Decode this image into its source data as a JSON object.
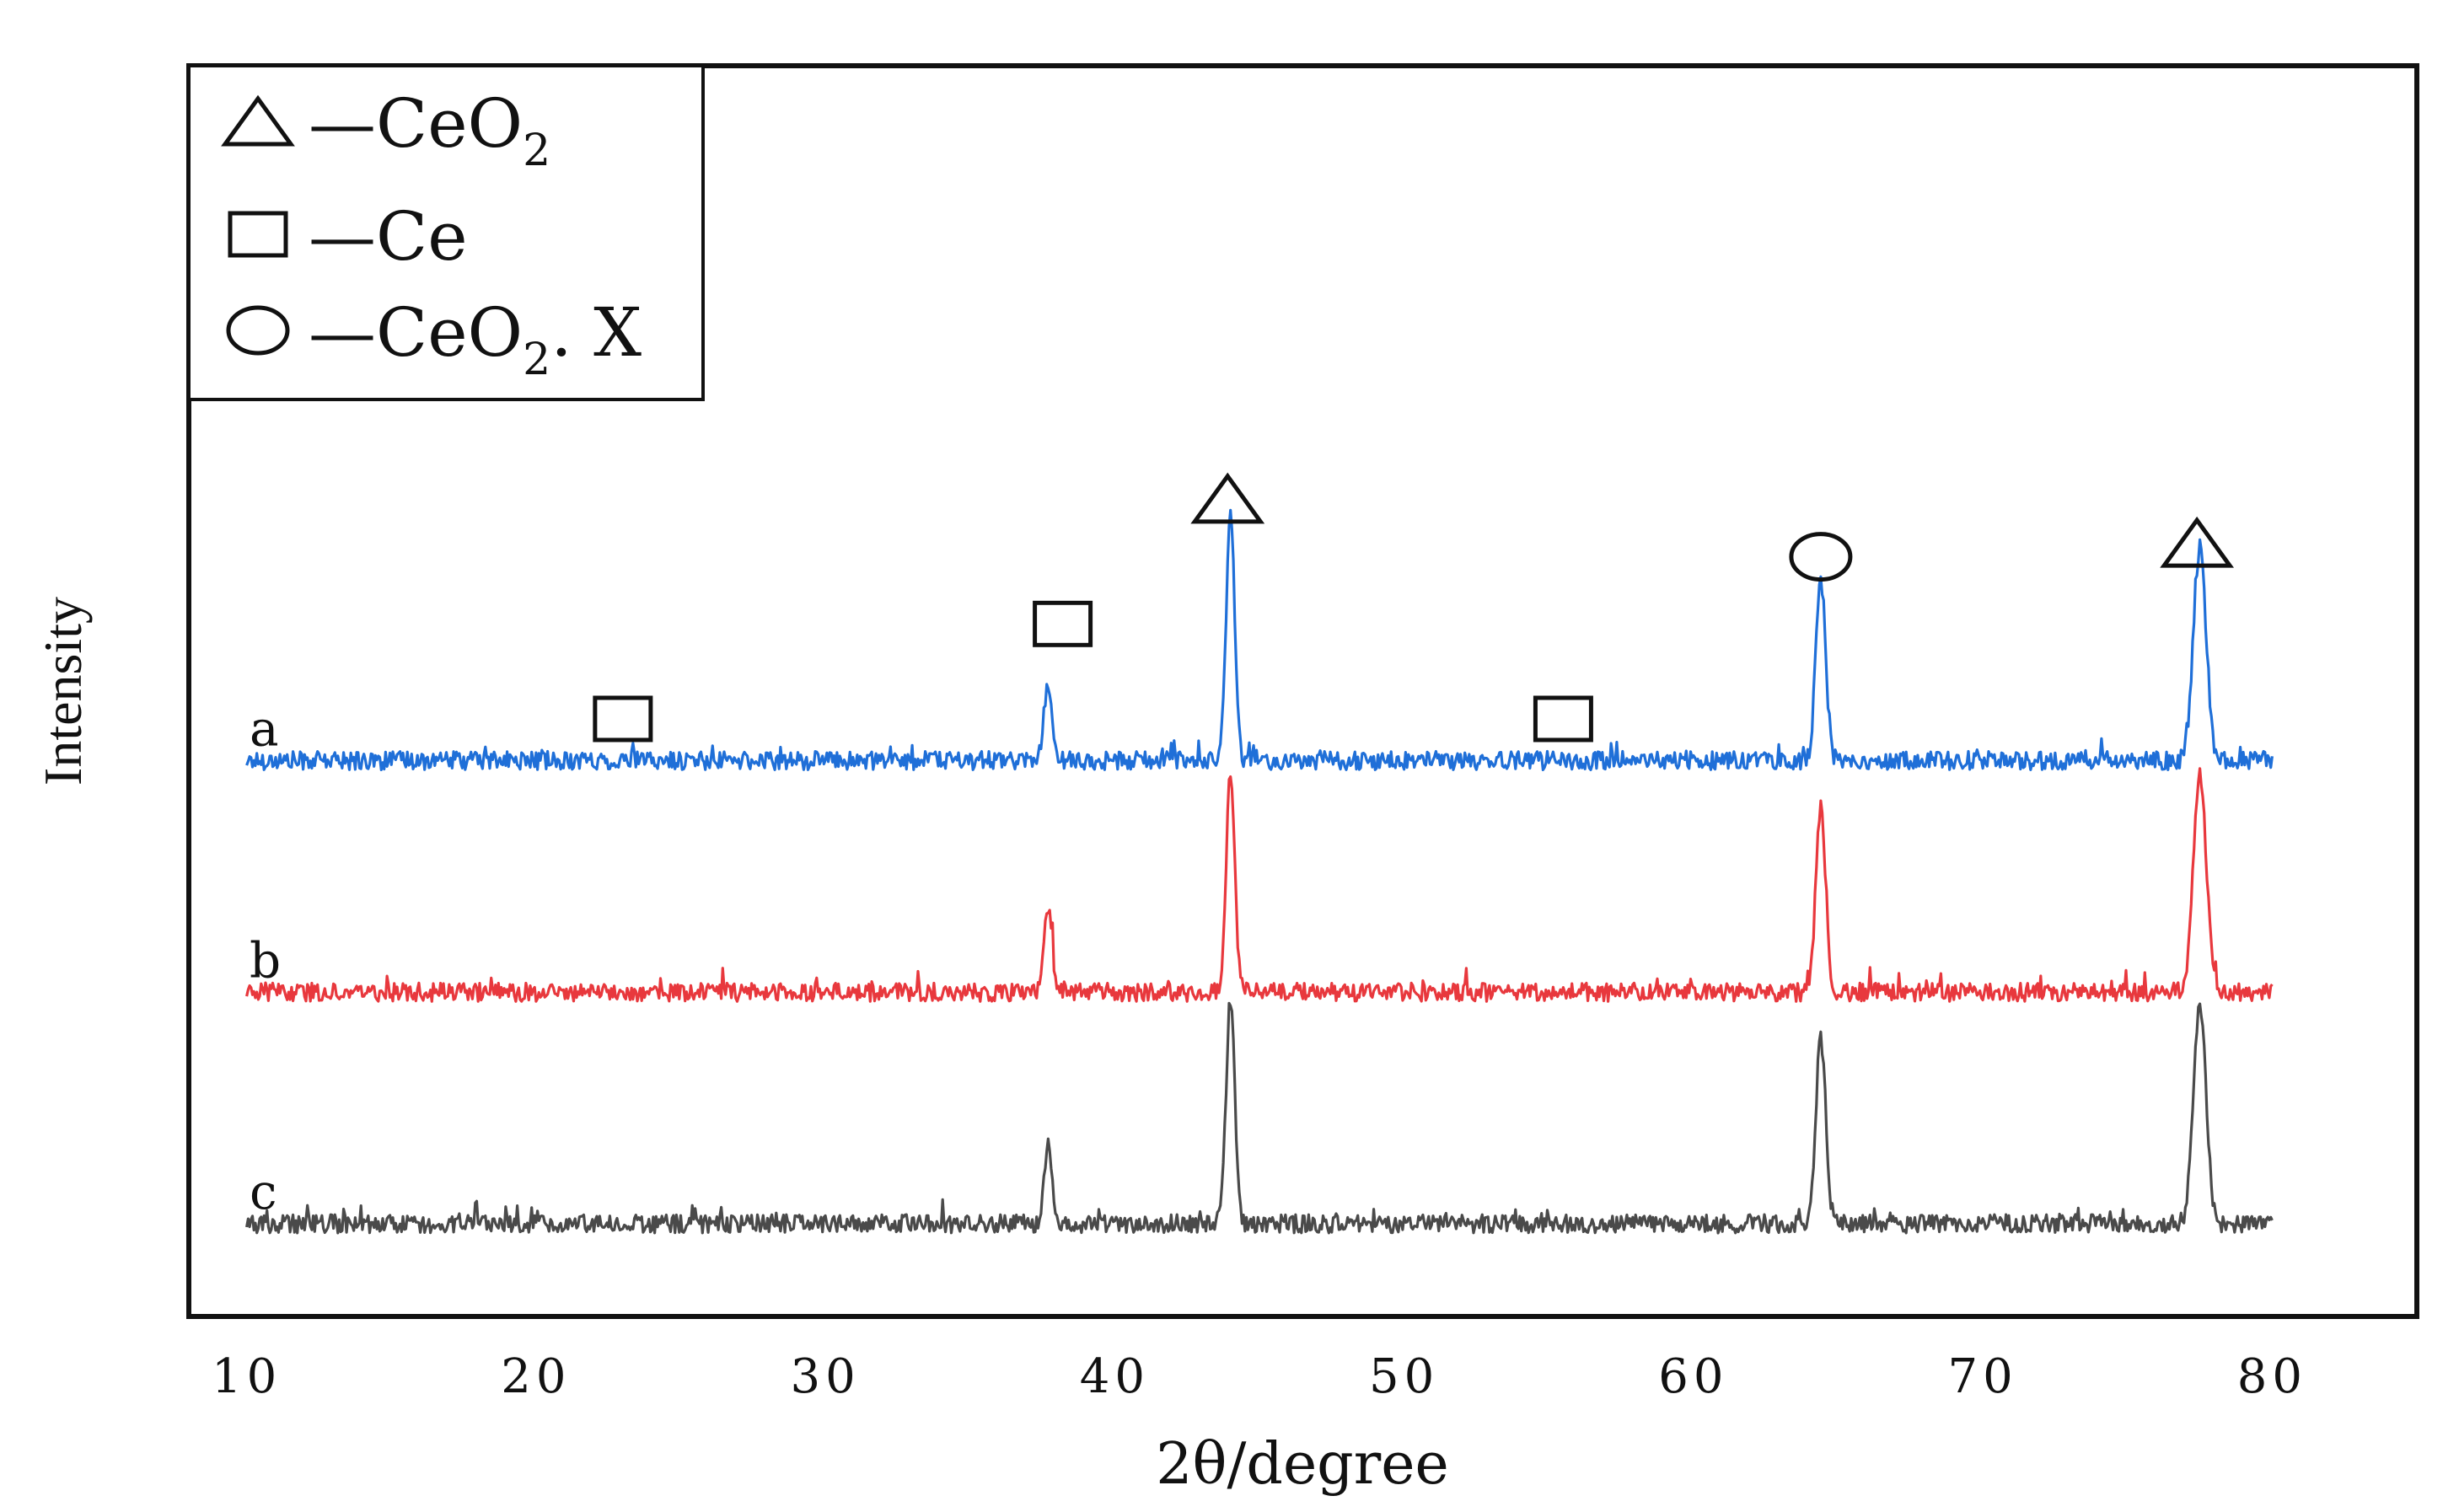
{
  "chart_data": {
    "type": "line",
    "title": "",
    "xlabel": "2θ/degree",
    "ylabel": "Intensity",
    "xlim": [
      8,
      85
    ],
    "xticks": [
      10,
      20,
      30,
      40,
      50,
      60,
      70,
      80
    ],
    "x_range": [
      10,
      80
    ],
    "ylim": [
      0,
      5.4
    ],
    "yticks_shown": false,
    "grid": false,
    "legend": {
      "position": "top-left",
      "entries": [
        {
          "marker": "triangle",
          "text": "—CeO",
          "sub": "2",
          "suffix": ""
        },
        {
          "marker": "square",
          "text": "—Ce",
          "sub": "",
          "suffix": ""
        },
        {
          "marker": "circle",
          "text": "—CeO",
          "sub": "2",
          "suffix": ". X"
        }
      ]
    },
    "series": [
      {
        "name": "a",
        "color": "#1f6fd8",
        "baseline": 2.4,
        "noise": 0.04,
        "peaks": [
          {
            "x": 37.7,
            "height": 0.34,
            "width": 0.14
          },
          {
            "x": 44.0,
            "height": 1.05,
            "width": 0.15
          },
          {
            "x": 64.4,
            "height": 0.78,
            "width": 0.17
          },
          {
            "x": 77.5,
            "height": 0.92,
            "width": 0.22
          }
        ]
      },
      {
        "name": "b",
        "color": "#e8383d",
        "baseline": 1.4,
        "noise": 0.04,
        "peaks": [
          {
            "x": 37.7,
            "height": 0.36,
            "width": 0.14
          },
          {
            "x": 44.0,
            "height": 0.93,
            "width": 0.15
          },
          {
            "x": 64.4,
            "height": 0.8,
            "width": 0.17
          },
          {
            "x": 77.5,
            "height": 0.95,
            "width": 0.22
          }
        ]
      },
      {
        "name": "c",
        "color": "#4a4a4a",
        "baseline": 0.4,
        "noise": 0.04,
        "peaks": [
          {
            "x": 37.7,
            "height": 0.36,
            "width": 0.14
          },
          {
            "x": 44.0,
            "height": 0.97,
            "width": 0.15
          },
          {
            "x": 64.4,
            "height": 0.8,
            "width": 0.17
          },
          {
            "x": 77.5,
            "height": 0.93,
            "width": 0.22
          }
        ]
      }
    ],
    "annotations": [
      {
        "marker": "square",
        "x": 23.0,
        "y": 2.58
      },
      {
        "marker": "square",
        "x": 38.2,
        "y": 2.99
      },
      {
        "marker": "triangle",
        "x": 43.9,
        "y": 3.53
      },
      {
        "marker": "square",
        "x": 55.5,
        "y": 2.58
      },
      {
        "marker": "circle",
        "x": 64.4,
        "y": 3.28
      },
      {
        "marker": "triangle",
        "x": 77.4,
        "y": 3.34
      }
    ]
  }
}
